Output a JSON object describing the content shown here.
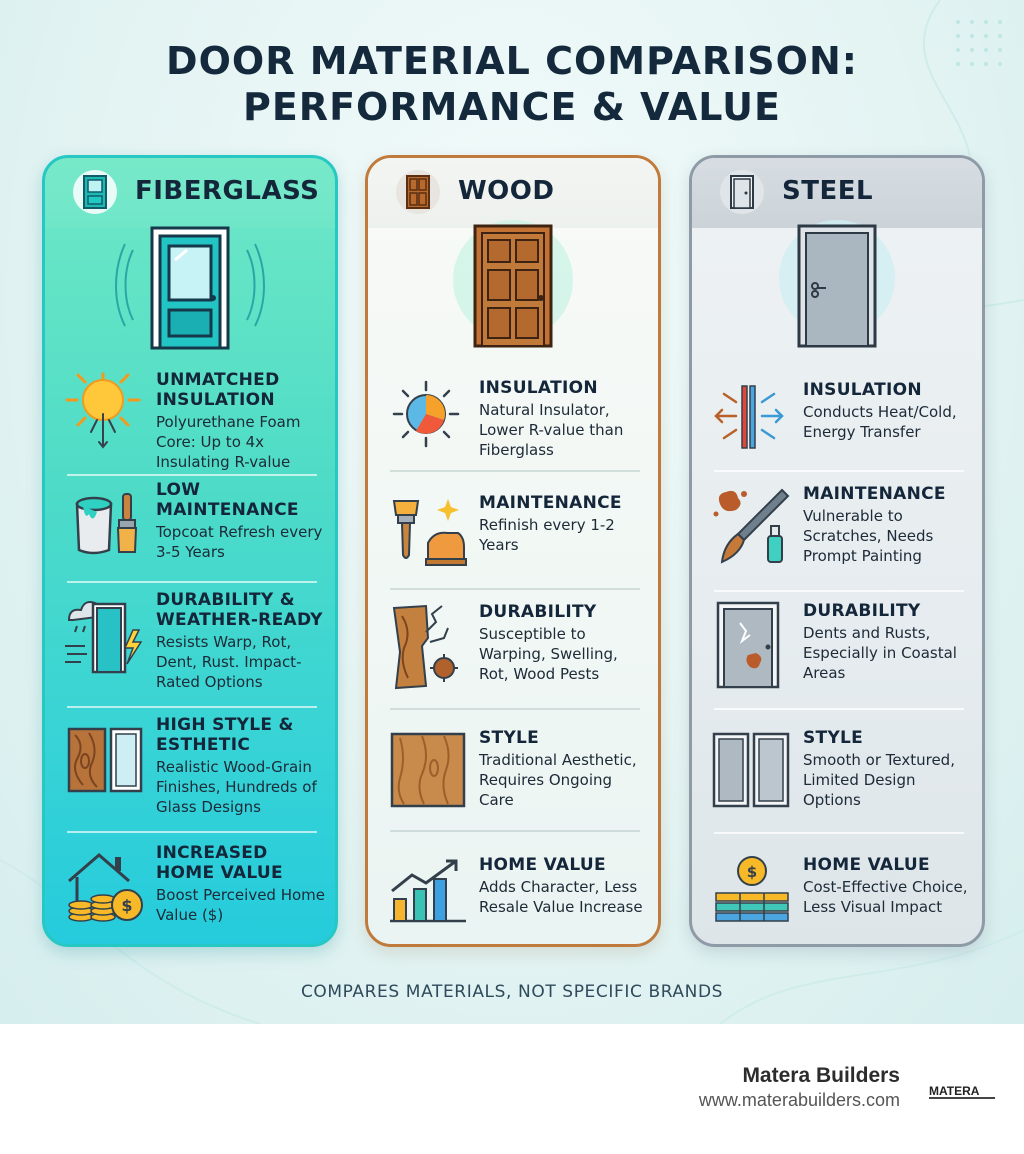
{
  "title": {
    "line1": "DOOR MATERIAL COMPARISON:",
    "line2": "PERFORMANCE & VALUE"
  },
  "columns": {
    "fiberglass": {
      "name": "FIBERGLASS",
      "accent": "#27c7c4",
      "features": [
        {
          "icon": "sun-snowflake-icon",
          "title": "UNMATCHED INSULATION",
          "desc": "Polyurethane Foam Core: Up to 4x Insulating R-value"
        },
        {
          "icon": "paint-bucket-brush-icon",
          "title": "LOW MAINTENANCE",
          "desc": "Topcoat Refresh every 3-5 Years"
        },
        {
          "icon": "storm-door-icon",
          "title": "DURABILITY & WEATHER-READY",
          "desc": "Resists Warp, Rot, Dent, Rust. Impact-Rated Options"
        },
        {
          "icon": "woodgrain-glass-panel-icon",
          "title": "HIGH STYLE & ESTHETIC",
          "desc": "Realistic Wood-Grain Finishes, Hundreds of Glass Designs"
        },
        {
          "icon": "house-coins-icon",
          "title": "INCREASED HOME VALUE",
          "desc": "Boost Perceived Home Value ($)"
        }
      ]
    },
    "wood": {
      "name": "WOOD",
      "accent": "#c07a3c",
      "features": [
        {
          "icon": "sun-gauge-icon",
          "title": "INSULATION",
          "desc": "Natural Insulator, Lower R-value than Fiberglass"
        },
        {
          "icon": "brush-sander-icon",
          "title": "MAINTENANCE",
          "desc": "Refinish every 1-2 Years"
        },
        {
          "icon": "cracked-wood-icon",
          "title": "DURABILITY",
          "desc": "Susceptible to Warping, Swelling, Rot, Wood Pests"
        },
        {
          "icon": "wood-panel-icon",
          "title": "STYLE",
          "desc": "Traditional Aesthetic, Requires Ongoing Care"
        },
        {
          "icon": "bar-chart-arrow-icon",
          "title": "HOME VALUE",
          "desc": "Adds Character, Less Resale Value Increase"
        }
      ]
    },
    "steel": {
      "name": "STEEL",
      "accent": "#8e9aa6",
      "features": [
        {
          "icon": "heat-transfer-icon",
          "title": "INSULATION",
          "desc": "Conducts Heat/Cold, Energy Transfer"
        },
        {
          "icon": "rust-brush-icon",
          "title": "MAINTENANCE",
          "desc": "Vulnerable to Scratches, Needs Prompt Painting"
        },
        {
          "icon": "dented-door-icon",
          "title": "DURABILITY",
          "desc": "Dents and Rusts, Especially in Coastal Areas"
        },
        {
          "icon": "steel-panels-icon",
          "title": "STYLE",
          "desc": "Smooth or Textured, Limited Design Options"
        },
        {
          "icon": "coin-bars-icon",
          "title": "HOME VALUE",
          "desc": "Cost-Effective Choice, Less Visual Impact"
        }
      ]
    }
  },
  "disclaimer": "COMPARES MATERIALS, NOT SPECIFIC BRANDS",
  "footer": {
    "company": "Matera Builders",
    "url": "www.materabuilders.com",
    "logo_text": "MATERA"
  }
}
